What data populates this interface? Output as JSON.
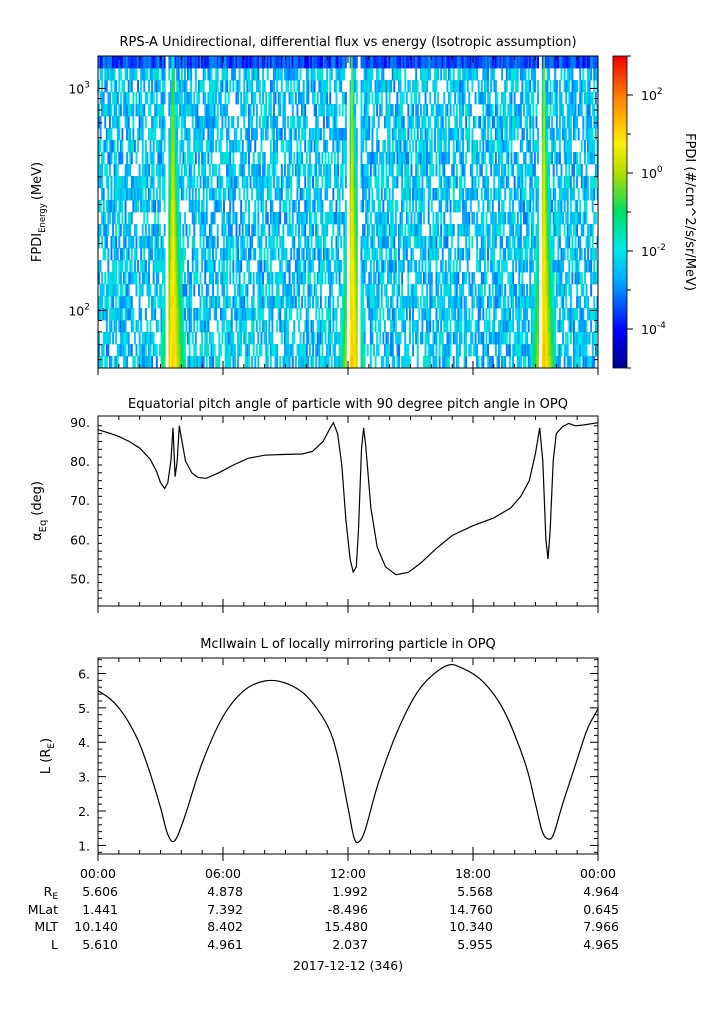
{
  "chart_data": [
    {
      "type": "heatmap",
      "title": "RPS-A Unidirectional, differential flux vs energy (Isotropic assumption)",
      "ylabel": "FPDI_Energy (MeV)",
      "ylabel_main": "FPDI",
      "ylabel_sub": "Energy",
      "ylabel_unit": "(MeV)",
      "yscale": "log",
      "ylim": [
        55,
        1400
      ],
      "y_ticks": [
        {
          "base": "10",
          "exp": "3",
          "value": 1000
        },
        {
          "base": "10",
          "exp": "2",
          "value": 100
        }
      ],
      "energy_channels_count": 26,
      "colorbar": {
        "label": "FPDI (#/cm^2/s/sr/MeV)",
        "scale": "log",
        "range": [
          1e-05,
          1000.0
        ],
        "ticks": [
          {
            "base": "10",
            "exp": "2",
            "value": 100
          },
          {
            "base": "10",
            "exp": "0",
            "value": 1
          },
          {
            "base": "10",
            "exp": "-2",
            "value": 0.01
          },
          {
            "base": "10",
            "exp": "-4",
            "value": 0.0001
          }
        ]
      },
      "flux_peaks_hours": [
        3.6,
        12.2,
        21.4
      ],
      "data_gaps_hours": [
        3.3,
        12.0,
        12.55,
        21.2
      ]
    },
    {
      "type": "line",
      "title": "Equatorial pitch angle of particle with 90 degree pitch angle in OPQ",
      "ylabel": "αEq (deg)",
      "ylabel_main": "α",
      "ylabel_sub": "Eq",
      "ylabel_unit": "(deg)",
      "ylim": [
        43,
        91.5
      ],
      "y_ticks": [
        "90.",
        "80.",
        "70.",
        "60.",
        "50."
      ],
      "series": [
        {
          "points": [
            [
              0,
              88
            ],
            [
              0.5,
              87.2
            ],
            [
              1,
              86.3
            ],
            [
              1.5,
              85
            ],
            [
              2,
              83.3
            ],
            [
              2.5,
              80.5
            ],
            [
              2.8,
              77.5
            ],
            [
              3.0,
              74.5
            ],
            [
              3.2,
              73
            ],
            [
              3.35,
              74.5
            ],
            [
              3.5,
              80
            ],
            [
              3.6,
              88.5
            ],
            [
              3.7,
              76
            ],
            [
              3.8,
              80
            ],
            [
              3.9,
              89
            ],
            [
              4.0,
              86
            ],
            [
              4.2,
              80
            ],
            [
              4.5,
              77
            ],
            [
              4.8,
              75.8
            ],
            [
              5.2,
              75.6
            ],
            [
              5.8,
              77
            ],
            [
              6.5,
              79
            ],
            [
              7.2,
              80.7
            ],
            [
              8,
              81.5
            ],
            [
              9,
              81.7
            ],
            [
              9.8,
              81.8
            ],
            [
              10.3,
              82.5
            ],
            [
              10.8,
              85
            ],
            [
              11.15,
              88.5
            ],
            [
              11.3,
              89.8
            ],
            [
              11.5,
              87
            ],
            [
              11.7,
              79
            ],
            [
              11.9,
              65
            ],
            [
              12.1,
              55
            ],
            [
              12.25,
              51.7
            ],
            [
              12.4,
              53
            ],
            [
              12.5,
              62
            ],
            [
              12.65,
              83
            ],
            [
              12.75,
              88.5
            ],
            [
              12.85,
              84
            ],
            [
              13.1,
              68
            ],
            [
              13.4,
              58
            ],
            [
              13.8,
              53
            ],
            [
              14.3,
              51
            ],
            [
              14.9,
              51.6
            ],
            [
              15.5,
              54
            ],
            [
              16.2,
              57.5
            ],
            [
              17,
              61
            ],
            [
              18,
              63.5
            ],
            [
              19,
              65.5
            ],
            [
              19.8,
              68
            ],
            [
              20.3,
              71
            ],
            [
              20.7,
              75
            ],
            [
              21.0,
              82
            ],
            [
              21.2,
              88.5
            ],
            [
              21.35,
              80
            ],
            [
              21.5,
              60
            ],
            [
              21.6,
              55
            ],
            [
              21.7,
              62
            ],
            [
              21.85,
              80
            ],
            [
              22.0,
              87
            ],
            [
              22.3,
              88.8
            ],
            [
              22.6,
              89.6
            ],
            [
              22.9,
              89
            ],
            [
              23.3,
              89.2
            ],
            [
              24,
              89.8
            ]
          ]
        }
      ]
    },
    {
      "type": "line",
      "title": "McIlwain L of locally mirroring particle in OPQ",
      "ylabel": "L (RE)",
      "ylabel_main": "L (R",
      "ylabel_sub": "E",
      "ylabel_unit": ")",
      "ylim": [
        0.75,
        6.45
      ],
      "y_ticks": [
        "6.",
        "5.",
        "4.",
        "3.",
        "2.",
        "1."
      ],
      "series": [
        {
          "points": [
            [
              0,
              5.5
            ],
            [
              0.5,
              5.3
            ],
            [
              1,
              5.0
            ],
            [
              1.5,
              4.55
            ],
            [
              2,
              3.95
            ],
            [
              2.5,
              3.1
            ],
            [
              3,
              2.1
            ],
            [
              3.3,
              1.4
            ],
            [
              3.55,
              1.12
            ],
            [
              3.8,
              1.25
            ],
            [
              4.2,
              1.9
            ],
            [
              5,
              3.4
            ],
            [
              6,
              4.75
            ],
            [
              7,
              5.5
            ],
            [
              8,
              5.78
            ],
            [
              9,
              5.72
            ],
            [
              10,
              5.35
            ],
            [
              11,
              4.5
            ],
            [
              11.5,
              3.6
            ],
            [
              12,
              2.1
            ],
            [
              12.3,
              1.2
            ],
            [
              12.55,
              1.12
            ],
            [
              12.85,
              1.5
            ],
            [
              13.5,
              2.9
            ],
            [
              14.5,
              4.5
            ],
            [
              15.5,
              5.6
            ],
            [
              16.7,
              6.22
            ],
            [
              17.5,
              6.15
            ],
            [
              18.5,
              5.75
            ],
            [
              19.5,
              4.9
            ],
            [
              20.5,
              3.4
            ],
            [
              21,
              2.2
            ],
            [
              21.3,
              1.45
            ],
            [
              21.55,
              1.2
            ],
            [
              21.85,
              1.3
            ],
            [
              22.3,
              2.2
            ],
            [
              23,
              3.5
            ],
            [
              23.5,
              4.4
            ],
            [
              24,
              4.97
            ]
          ]
        }
      ]
    }
  ],
  "x_axis": {
    "ticks": [
      "00:00",
      "06:00",
      "12:00",
      "18:00",
      "00:00"
    ],
    "date_label": "2017-12-12 (346)"
  },
  "ephemeris": {
    "rows": [
      {
        "label_main": "R",
        "label_sub": "E",
        "values": [
          "5.606",
          "4.878",
          "1.992",
          "5.568",
          "4.964"
        ]
      },
      {
        "label_main": "MLat",
        "label_sub": "",
        "values": [
          "1.441",
          "7.392",
          "-8.496",
          "14.760",
          "0.645"
        ]
      },
      {
        "label_main": "MLT",
        "label_sub": "",
        "values": [
          "10.140",
          "8.402",
          "15.480",
          "10.340",
          "7.966"
        ]
      },
      {
        "label_main": "L",
        "label_sub": "",
        "values": [
          "5.610",
          "4.961",
          "2.037",
          "5.955",
          "4.965"
        ]
      }
    ]
  }
}
